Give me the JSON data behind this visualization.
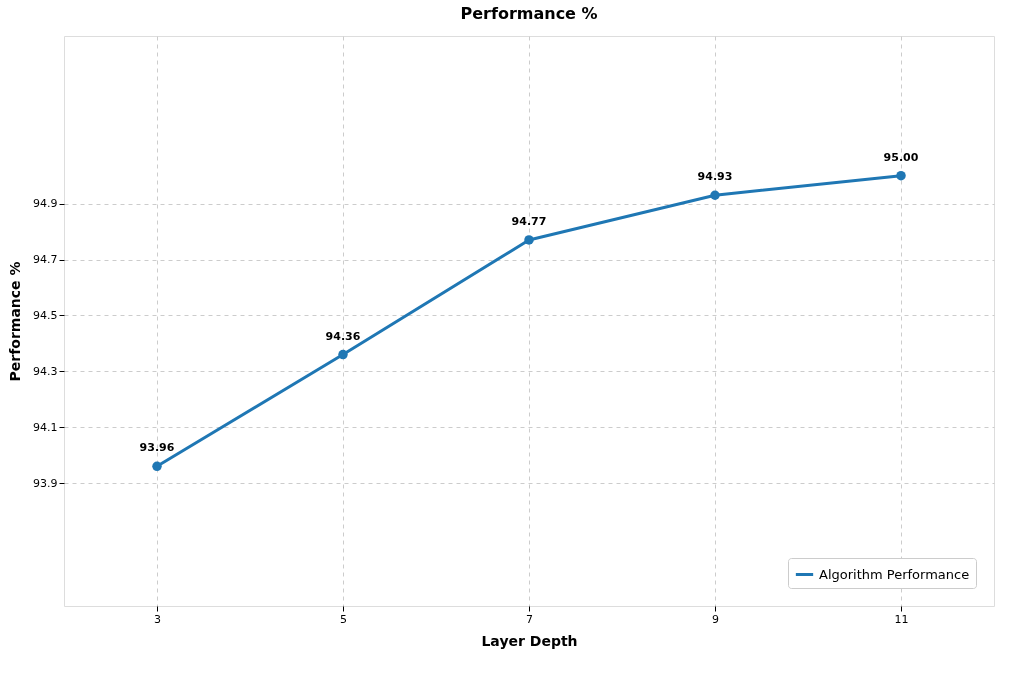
{
  "chart_data": {
    "type": "line",
    "title": "Performance %",
    "xlabel": "Layer Depth",
    "ylabel": "Performance %",
    "x": [
      3,
      5,
      7,
      9,
      11
    ],
    "series": [
      {
        "name": "Algorithm Performance",
        "color": "#1f77b4",
        "values": [
          93.96,
          94.36,
          94.77,
          94.93,
          95.0
        ],
        "value_labels": [
          "93.96",
          "94.36",
          "94.77",
          "94.93",
          "95.00"
        ]
      }
    ],
    "xlim": [
      2,
      12
    ],
    "xticks": [
      3,
      5,
      7,
      9,
      11
    ],
    "ylim": [
      93.46,
      95.5
    ],
    "yticks": [
      93.9,
      94.1,
      94.3,
      94.5,
      94.7,
      94.9
    ],
    "grid": true,
    "legend": "bottom right",
    "marker": "circle",
    "line_style": "solid"
  }
}
